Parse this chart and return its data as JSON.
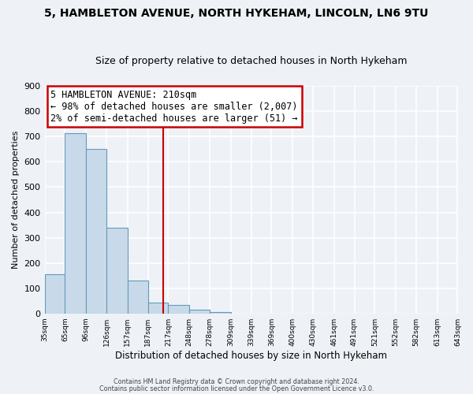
{
  "title_line1": "5, HAMBLETON AVENUE, NORTH HYKEHAM, LINCOLN, LN6 9TU",
  "title_line2": "Size of property relative to detached houses in North Hykeham",
  "xlabel": "Distribution of detached houses by size in North Hykeham",
  "ylabel": "Number of detached properties",
  "bar_color": "#c8daea",
  "bar_edge_color": "#6699bb",
  "annotation_box_edge": "#cc0000",
  "annotation_box_face": "#ffffff",
  "vline_color": "#cc0000",
  "annotation_title": "5 HAMBLETON AVENUE: 210sqm",
  "annotation_line1": "← 98% of detached houses are smaller (2,007)",
  "annotation_line2": "2% of semi-detached houses are larger (51) →",
  "bins": [
    35,
    65,
    96,
    126,
    157,
    187,
    217,
    248,
    278,
    309,
    339,
    369,
    400,
    430,
    461,
    491,
    521,
    552,
    582,
    613,
    643
  ],
  "bin_labels": [
    "35sqm",
    "65sqm",
    "96sqm",
    "126sqm",
    "157sqm",
    "187sqm",
    "217sqm",
    "248sqm",
    "278sqm",
    "309sqm",
    "339sqm",
    "369sqm",
    "400sqm",
    "430sqm",
    "461sqm",
    "491sqm",
    "521sqm",
    "552sqm",
    "582sqm",
    "613sqm",
    "643sqm"
  ],
  "counts": [
    155,
    715,
    650,
    340,
    130,
    43,
    33,
    16,
    5,
    0,
    0,
    0,
    0,
    0,
    0,
    0,
    0,
    0,
    0,
    0
  ],
  "vline_x": 210,
  "ylim": [
    0,
    900
  ],
  "yticks": [
    0,
    100,
    200,
    300,
    400,
    500,
    600,
    700,
    800,
    900
  ],
  "footer1": "Contains HM Land Registry data © Crown copyright and database right 2024.",
  "footer2": "Contains public sector information licensed under the Open Government Licence v3.0.",
  "background_color": "#eef2f7",
  "plot_bg_color": "#eef2f7",
  "grid_color": "#ffffff",
  "title_fontsize": 10,
  "subtitle_fontsize": 9,
  "annotation_fontsize": 8.5
}
